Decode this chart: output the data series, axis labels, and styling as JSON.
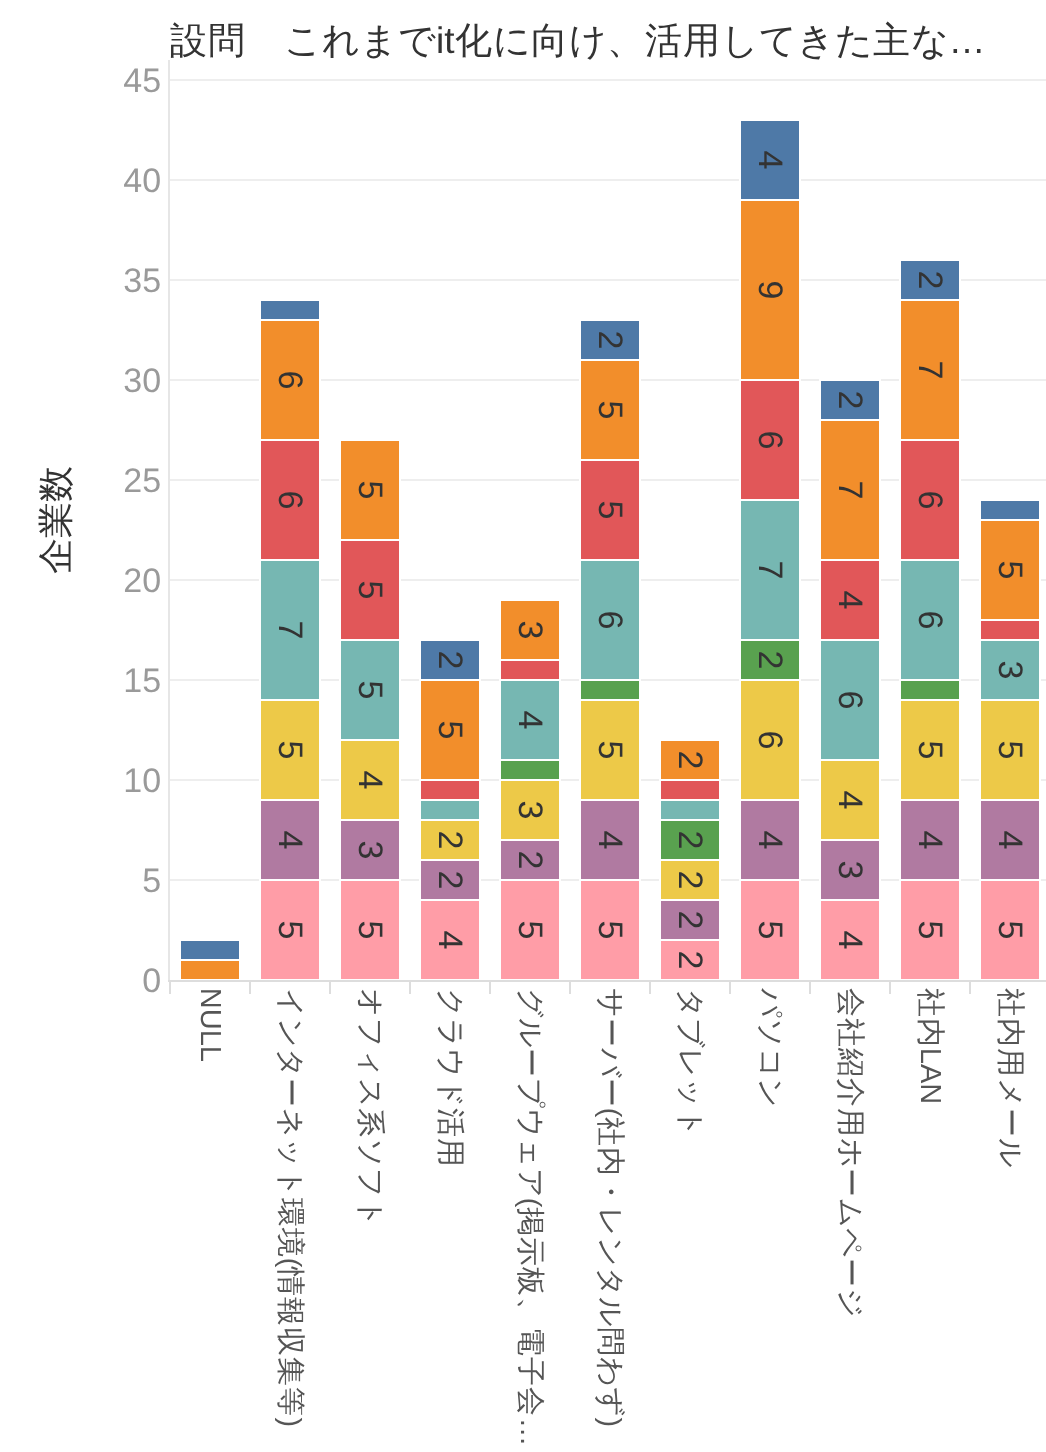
{
  "chart_data": {
    "type": "bar",
    "stacked": true,
    "title": "設問　これまでit化に向け、活用してきた主な…",
    "ylabel": "企業数",
    "categories": [
      "NULL",
      "インターネット環境(情報収集等)",
      "オフィス系ソフト",
      "クラウド活用",
      "グループウェア(掲示板、電子会…",
      "サーバー(社内・レンタル問わず)",
      "タブレット",
      "パソコン",
      "会社紹介用ホームページ",
      "社内LAN",
      "社内用メール"
    ],
    "ylim": [
      0,
      46
    ],
    "yticks": [
      0,
      5,
      10,
      15,
      20,
      25,
      30,
      35,
      40,
      45
    ],
    "grid": "y",
    "series": [
      {
        "color": "#ff9da7",
        "values": [
          null,
          5,
          5,
          4,
          5,
          5,
          2,
          5,
          4,
          5,
          5
        ],
        "value_labels": [
          null,
          "5",
          "5",
          "4",
          "5",
          "5",
          "2",
          "5",
          "4",
          "5",
          "5"
        ]
      },
      {
        "color": "#b07aa1",
        "values": [
          null,
          4,
          3,
          2,
          2,
          4,
          2,
          4,
          3,
          4,
          4
        ],
        "value_labels": [
          null,
          "4",
          "3",
          "2",
          "2",
          "4",
          "2",
          "4",
          "3",
          "4",
          "4"
        ]
      },
      {
        "color": "#edc948",
        "values": [
          null,
          5,
          4,
          2,
          3,
          5,
          2,
          6,
          4,
          5,
          5
        ],
        "value_labels": [
          null,
          "5",
          "4",
          "2",
          "3",
          "5",
          "2",
          "6",
          "4",
          "5",
          "5"
        ]
      },
      {
        "color": "#59a14f",
        "values": [
          null,
          null,
          null,
          null,
          1,
          1,
          2,
          2,
          null,
          1,
          null
        ],
        "value_labels": [
          null,
          null,
          null,
          null,
          null,
          null,
          "2",
          "2",
          null,
          null,
          null
        ]
      },
      {
        "color": "#76b7b2",
        "values": [
          null,
          7,
          5,
          1,
          4,
          6,
          1,
          7,
          6,
          6,
          3
        ],
        "value_labels": [
          null,
          "7",
          "5",
          null,
          "4",
          "6",
          null,
          "7",
          "6",
          "6",
          "3"
        ]
      },
      {
        "color": "#e15759",
        "values": [
          null,
          6,
          5,
          1,
          1,
          5,
          1,
          6,
          4,
          6,
          1
        ],
        "value_labels": [
          null,
          "6",
          "5",
          null,
          null,
          "5",
          null,
          "6",
          "4",
          "6",
          null
        ]
      },
      {
        "color": "#f28e2b",
        "values": [
          1,
          6,
          5,
          5,
          3,
          5,
          2,
          9,
          7,
          7,
          5
        ],
        "value_labels": [
          null,
          "6",
          "5",
          "5",
          "3",
          "5",
          "2",
          "9",
          "7",
          "7",
          "5"
        ]
      },
      {
        "color": "#4e79a7",
        "values": [
          1,
          1,
          null,
          2,
          null,
          2,
          null,
          4,
          2,
          2,
          1
        ],
        "value_labels": [
          null,
          null,
          null,
          "2",
          null,
          "2",
          null,
          "4",
          "2",
          "2",
          null
        ]
      }
    ]
  }
}
